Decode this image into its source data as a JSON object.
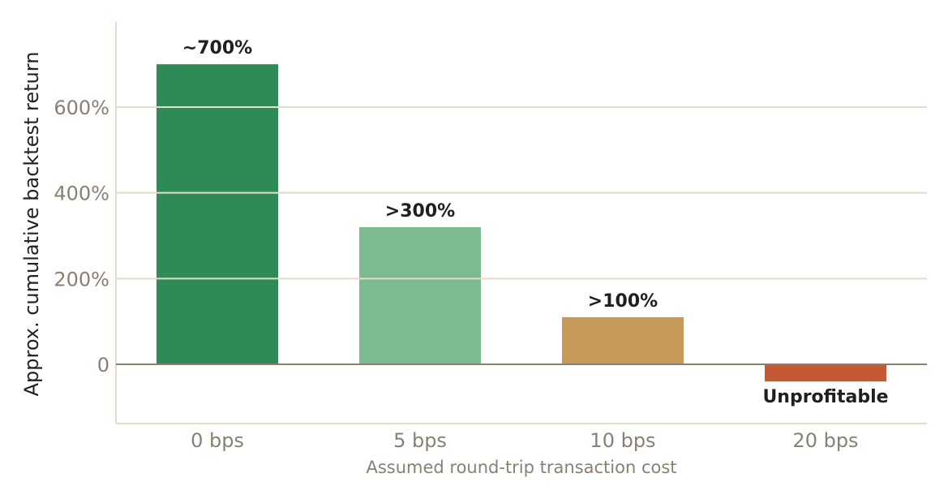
{
  "chart_data": {
    "type": "bar",
    "categories": [
      "0 bps",
      "5 bps",
      "10 bps",
      "20 bps"
    ],
    "values": [
      700,
      320,
      110,
      -40
    ],
    "data_labels": [
      "~700%",
      ">300%",
      ">100%",
      "Unprofitable"
    ],
    "colors": [
      "#2e8b57",
      "#7cba8f",
      "#c89a5a",
      "#c45a35"
    ],
    "xlabel": "Assumed round-trip transaction cost",
    "ylabel": "Approx. cumulative backtest return",
    "ylim": [
      -140,
      800
    ],
    "yticks": [
      0,
      200,
      400,
      600
    ],
    "ytick_labels": [
      "0",
      "200%",
      "400%",
      "600%"
    ],
    "grid": "horizontal",
    "colors_ui": {
      "grid": "#e6dccb",
      "zero_line": "#8a7f73",
      "axis": "#e6dccb"
    }
  }
}
